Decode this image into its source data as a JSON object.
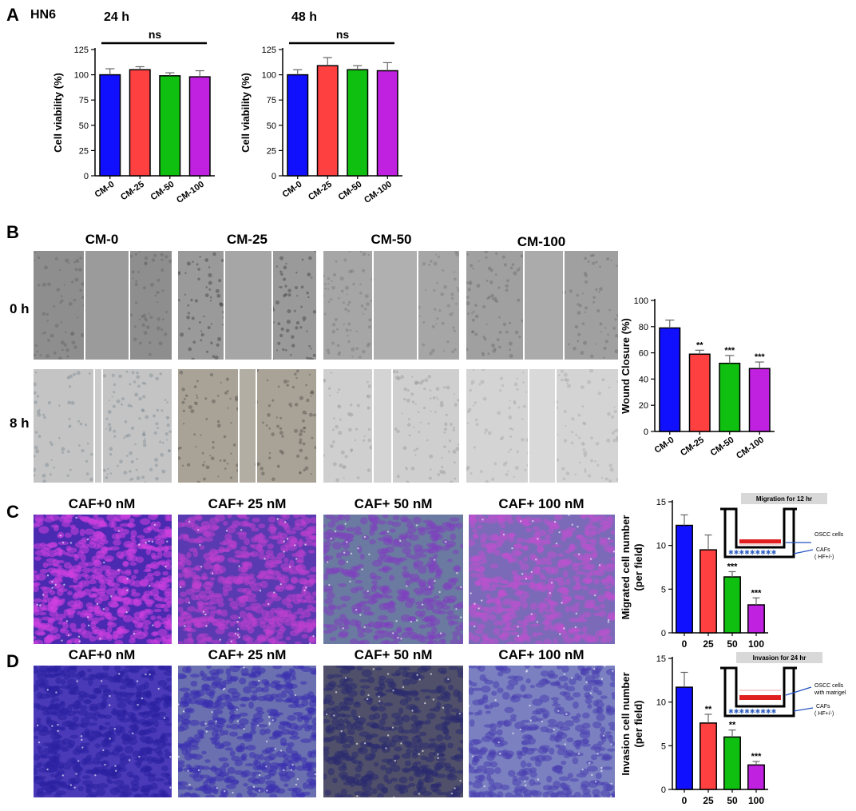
{
  "panels": {
    "A": {
      "letter": "A",
      "cell_line": "HN6"
    },
    "B": {
      "letter": "B",
      "columns": [
        "CM-0",
        "CM-25",
        "CM-50",
        "CM-100"
      ],
      "rows": [
        "0 h",
        "8 h"
      ]
    },
    "C": {
      "letter": "C",
      "columns": [
        "CAF+0 nM",
        "CAF+ 25 nM",
        "CAF+ 50 nM",
        "CAF+ 100 nM"
      ]
    },
    "D": {
      "letter": "D",
      "columns": [
        "CAF+0 nM",
        "CAF+ 25 nM",
        "CAF+ 50 nM",
        "CAF+ 100 nM"
      ]
    }
  },
  "colors": {
    "blue": "#1010ff",
    "red": "#ff4040",
    "green": "#10c010",
    "purple": "#c020e0"
  },
  "schematics": {
    "migration": {
      "title": "Migration  for 12 hr",
      "top_label": "OSCC cells",
      "bottom_label": "CAFs",
      "bottom_sub": "( HF+/-)"
    },
    "invasion": {
      "title": "Invasion for 24 hr",
      "top_label": "OSCC cells",
      "top_sub": "with matrigel",
      "bottom_label": "CAFs",
      "bottom_sub": "( HF+/-)"
    }
  },
  "chart_data": [
    {
      "id": "a24",
      "type": "bar",
      "title": "24 h",
      "xlabel": "",
      "ylabel": "Cell viability (%)",
      "categories": [
        "CM-0",
        "CM-25",
        "CM-50",
        "CM-100"
      ],
      "values": [
        100,
        105,
        99,
        98
      ],
      "errors": [
        6,
        3,
        3,
        6
      ],
      "ylim": [
        0,
        125
      ],
      "yticks": [
        0,
        25,
        50,
        75,
        100,
        125
      ],
      "ytick_labels": [
        "0",
        "25",
        "50",
        "75",
        "100",
        "125"
      ],
      "significance": [
        "",
        "",
        "",
        ""
      ],
      "bracket_label": "ns",
      "rotate_labels": true
    },
    {
      "id": "a48",
      "type": "bar",
      "title": "48 h",
      "xlabel": "",
      "ylabel": "Cell viability (%)",
      "categories": [
        "CM-0",
        "CM-25",
        "CM-50",
        "CM-100"
      ],
      "values": [
        100,
        109,
        105,
        104
      ],
      "errors": [
        5,
        8,
        4,
        8
      ],
      "ylim": [
        0,
        125
      ],
      "yticks": [
        0,
        25,
        50,
        75,
        100,
        125
      ],
      "ytick_labels": [
        "0",
        "25",
        "50",
        "75",
        "100",
        "125"
      ],
      "significance": [
        "",
        "",
        "",
        ""
      ],
      "bracket_label": "ns",
      "rotate_labels": true
    },
    {
      "id": "b",
      "type": "bar",
      "title": "",
      "xlabel": "",
      "ylabel": "Wound Closure (%)",
      "categories": [
        "CM-0",
        "CM-25",
        "CM-50",
        "CM-100"
      ],
      "values": [
        79,
        59,
        52,
        48
      ],
      "errors": [
        6,
        3,
        6,
        5
      ],
      "ylim": [
        0,
        100
      ],
      "yticks": [
        0,
        20,
        40,
        60,
        80,
        100
      ],
      "ytick_labels": [
        "0",
        "20",
        "40",
        "60",
        "80",
        "100"
      ],
      "significance": [
        "",
        "**",
        "***",
        "***"
      ],
      "bracket_label": "",
      "rotate_labels": true
    },
    {
      "id": "c",
      "type": "bar",
      "title": "",
      "xlabel": "",
      "ylabel": "Migrated cell number",
      "ylabel2": "(per field)",
      "categories": [
        "0",
        "25",
        "50",
        "100"
      ],
      "values": [
        12.3,
        9.5,
        6.4,
        3.2
      ],
      "errors": [
        1.2,
        1.7,
        0.6,
        0.8
      ],
      "ylim": [
        0,
        15
      ],
      "yticks": [
        0,
        5,
        10,
        15
      ],
      "ytick_labels": [
        "0",
        "5",
        "10",
        "15"
      ],
      "significance": [
        "",
        "",
        "***",
        "***"
      ],
      "bracket_label": "",
      "rotate_labels": false
    },
    {
      "id": "d",
      "type": "bar",
      "title": "",
      "xlabel": "",
      "ylabel": "Invasion cell number",
      "ylabel2": "(per field)",
      "categories": [
        "0",
        "25",
        "50",
        "100"
      ],
      "values": [
        11.7,
        7.6,
        6.0,
        2.8
      ],
      "errors": [
        1.7,
        1.0,
        0.8,
        0.4
      ],
      "ylim": [
        0,
        15
      ],
      "yticks": [
        0,
        5,
        10,
        15
      ],
      "ytick_labels": [
        "0",
        "5",
        "10",
        "15"
      ],
      "significance": [
        "",
        "**",
        "**",
        "***"
      ],
      "bracket_label": "",
      "rotate_labels": false
    }
  ]
}
